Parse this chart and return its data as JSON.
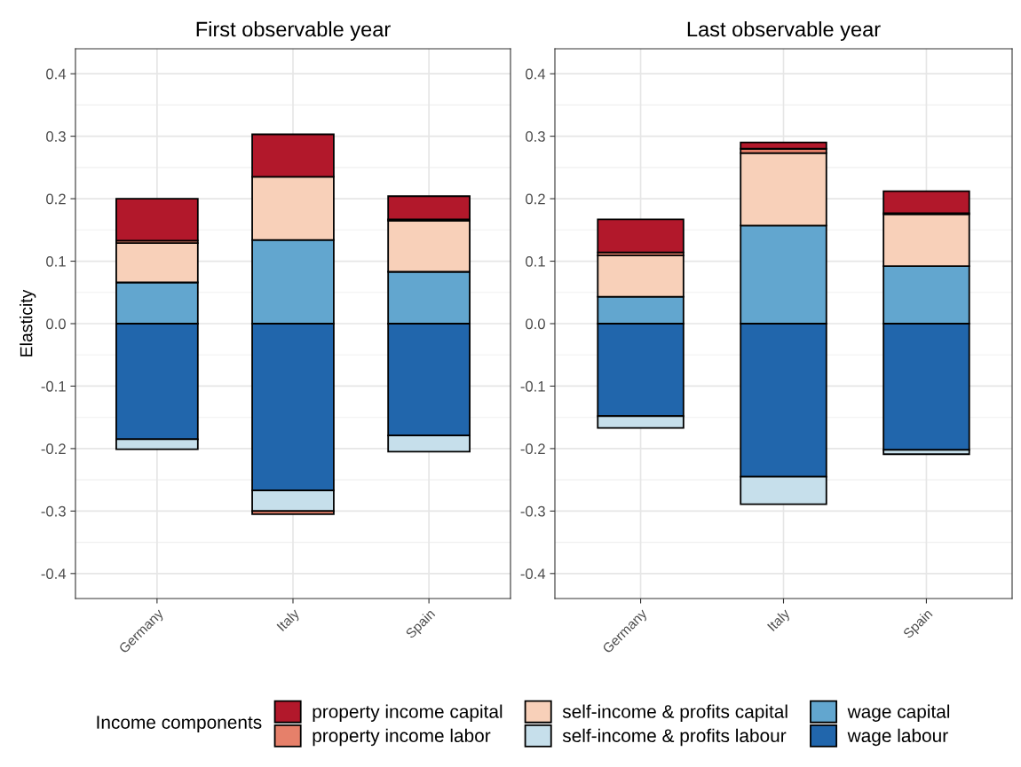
{
  "chart_data": [
    {
      "type": "bar",
      "stacked": true,
      "title": "First observable year",
      "ylabel": "Elasticity",
      "categories": [
        "Germany",
        "Italy",
        "Spain"
      ],
      "legend": "bottom",
      "legend_title": "Income components",
      "grid": true,
      "ylim": [
        -0.44,
        0.44
      ],
      "yticks": [
        {
          "value": -0.4,
          "label": "-0.4"
        },
        {
          "value": -0.3,
          "label": "-0.3"
        },
        {
          "value": -0.2,
          "label": "-0.2"
        },
        {
          "value": -0.1,
          "label": "-0.1"
        },
        {
          "value": 0,
          "label": "0.0"
        },
        0.1,
        0.2,
        0.3,
        0.4
      ],
      "series": [
        {
          "name": "wage labour",
          "color": "#2166ac",
          "values": [
            -0.185,
            -0.267,
            -0.179
          ]
        },
        {
          "name": "wage capital",
          "color": "#62a6cf",
          "values": [
            0.066,
            0.134,
            0.083
          ]
        },
        {
          "name": "self-income & profits labour",
          "color": "#c6dfeb",
          "values": [
            -0.016,
            -0.033,
            -0.026
          ]
        },
        {
          "name": "self-income & profits capital",
          "color": "#f8d0b9",
          "values": [
            0.063,
            0.101,
            0.082
          ]
        },
        {
          "name": "property income labor",
          "color": "#e6806a",
          "values": [
            0.004,
            -0.005,
            0.002
          ]
        },
        {
          "name": "property income capital",
          "color": "#b2182b",
          "values": [
            0.067,
            0.068,
            0.037
          ]
        }
      ]
    },
    {
      "type": "bar",
      "stacked": true,
      "title": "Last observable year",
      "categories": [
        "Germany",
        "Italy",
        "Spain"
      ],
      "grid": true,
      "ylim": [
        -0.44,
        0.44
      ],
      "yticks": [
        {
          "value": -0.4,
          "label": "-0.4"
        },
        {
          "value": -0.3,
          "label": "-0.3"
        },
        {
          "value": -0.2,
          "label": "-0.2"
        },
        {
          "value": -0.1,
          "label": "-0.1"
        },
        {
          "value": 0,
          "label": "0.0"
        },
        0.1,
        0.2,
        0.3,
        0.4
      ],
      "series": [
        {
          "color": "#2166ac",
          "values": [
            -0.148,
            -0.245,
            -0.202
          ]
        },
        {
          "color": "#62a6cf",
          "values": [
            0.043,
            0.157,
            0.092
          ]
        },
        {
          "color": "#c6dfeb",
          "values": [
            -0.019,
            -0.044,
            -0.007
          ]
        },
        {
          "color": "#f8d0b9",
          "values": [
            0.066,
            0.116,
            0.083
          ]
        },
        {
          "color": "#e6806a",
          "values": [
            0.005,
            0.007,
            0.002
          ]
        },
        {
          "color": "#b2182b",
          "values": [
            0.053,
            0.01,
            0.035
          ]
        }
      ]
    }
  ]
}
